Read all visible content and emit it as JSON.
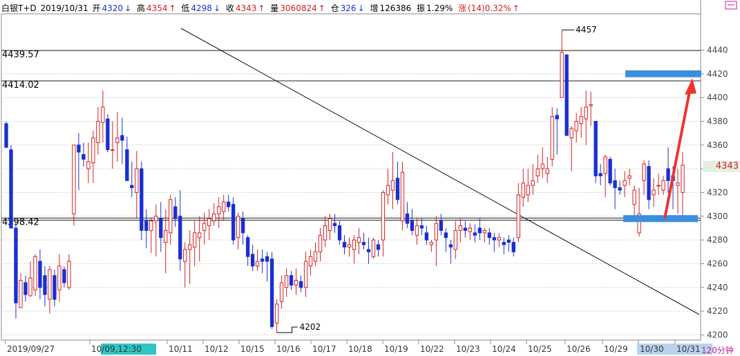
{
  "header": {
    "instrument": "白银T+D",
    "date": "2019/10/31",
    "open_label": "开",
    "open": "4320",
    "high_label": "高",
    "high": "4354",
    "low_label": "低",
    "low": "4298",
    "close_label": "收",
    "close": "4343",
    "volume_label": "量",
    "volume": "3060824",
    "oi_label": "仓",
    "oi": "326",
    "oi_change_label": "增",
    "oi_change": "126386",
    "amplitude_label": "振",
    "amplitude": "1.29%",
    "change_label": "涨",
    "change": "(14)0.32%"
  },
  "current_price_tag": "4343",
  "period": "120分钟",
  "colors": {
    "up": "#d22020",
    "down": "#1a2fd0",
    "highlight": "#3a8ee0",
    "arrow": "#ee3333"
  },
  "chart_data": {
    "type": "candlestick",
    "ylim": [
      4197,
      4457
    ],
    "y_ticks": [
      4200,
      4220,
      4240,
      4260,
      4280,
      4300,
      4320,
      4340,
      4360,
      4380,
      4400,
      4420,
      4440
    ],
    "x_labels": [
      "2019/09/27",
      "10/09,12:30",
      "10/11",
      "10/12",
      "10/15",
      "10/16",
      "10/17",
      "10/18",
      "10/19",
      "10/22",
      "10/23",
      "10/24",
      "10/25",
      "10/26",
      "10/29",
      "10/30",
      "10/31"
    ],
    "highlighted_x_labels": [
      "10/09,12:30",
      "10/30",
      "10/31"
    ],
    "horizontal_levels": [
      {
        "label": "4439.57",
        "value": 4439.57
      },
      {
        "label": "4414.02",
        "value": 4414.02
      },
      {
        "label": "4298.42",
        "value": 4298.42
      }
    ],
    "annotations": [
      {
        "text": "4457",
        "value": 4457
      },
      {
        "text": "4202",
        "value": 4202
      }
    ],
    "candles": [
      [
        4378,
        4380,
        4358,
        4358
      ],
      [
        4356,
        4360,
        4290,
        4290
      ],
      [
        4290,
        4295,
        4214,
        4227
      ],
      [
        4223,
        4252,
        4223,
        4246
      ],
      [
        4244,
        4250,
        4228,
        4234
      ],
      [
        4233,
        4262,
        4232,
        4248
      ],
      [
        4238,
        4268,
        4233,
        4266
      ],
      [
        4262,
        4272,
        4230,
        4240
      ],
      [
        4250,
        4258,
        4224,
        4234
      ],
      [
        4230,
        4258,
        4218,
        4255
      ],
      [
        4250,
        4255,
        4224,
        4230
      ],
      [
        4238,
        4268,
        4228,
        4258
      ],
      [
        4255,
        4258,
        4240,
        4244
      ],
      [
        4240,
        4268,
        4238,
        4262
      ],
      [
        4302,
        4360,
        4292,
        4360
      ],
      [
        4360,
        4370,
        4322,
        4354
      ],
      [
        4352,
        4362,
        4342,
        4348
      ],
      [
        4340,
        4362,
        4328,
        4346
      ],
      [
        4345,
        4372,
        4328,
        4366
      ],
      [
        4362,
        4392,
        4352,
        4380
      ],
      [
        4379,
        4406,
        4362,
        4392
      ],
      [
        4382,
        4386,
        4354,
        4356
      ],
      [
        4356,
        4380,
        4340,
        4356
      ],
      [
        4362,
        4388,
        4346,
        4366
      ],
      [
        4368,
        4383,
        4344,
        4364
      ],
      [
        4356,
        4367,
        4330,
        4330
      ],
      [
        4326,
        4346,
        4316,
        4324
      ],
      [
        4320,
        4355,
        4298,
        4340
      ],
      [
        4340,
        4346,
        4280,
        4288
      ],
      [
        4296,
        4306,
        4273,
        4288
      ],
      [
        4288,
        4299,
        4269,
        4296
      ],
      [
        4296,
        4310,
        4266,
        4300
      ],
      [
        4298,
        4312,
        4270,
        4282
      ],
      [
        4278,
        4306,
        4252,
        4288
      ],
      [
        4286,
        4318,
        4276,
        4314
      ],
      [
        4308,
        4316,
        4291,
        4298
      ],
      [
        4300,
        4322,
        4254,
        4264
      ],
      [
        4262,
        4278,
        4240,
        4272
      ],
      [
        4272,
        4288,
        4243,
        4276
      ],
      [
        4274,
        4297,
        4258,
        4286
      ],
      [
        4282,
        4300,
        4262,
        4286
      ],
      [
        4288,
        4303,
        4276,
        4294
      ],
      [
        4292,
        4306,
        4280,
        4298
      ],
      [
        4296,
        4311,
        4292,
        4302
      ],
      [
        4302,
        4316,
        4290,
        4308
      ],
      [
        4304,
        4318,
        4296,
        4312
      ],
      [
        4312,
        4318,
        4304,
        4308
      ],
      [
        4310,
        4316,
        4276,
        4280
      ],
      [
        4282,
        4303,
        4272,
        4300
      ],
      [
        4298,
        4304,
        4276,
        4286
      ],
      [
        4282,
        4284,
        4258,
        4266
      ],
      [
        4268,
        4276,
        4254,
        4258
      ],
      [
        4258,
        4272,
        4254,
        4262
      ],
      [
        4264,
        4272,
        4252,
        4262
      ],
      [
        4266,
        4270,
        4245,
        4262
      ],
      [
        4264,
        4270,
        4205,
        4207
      ],
      [
        4210,
        4230,
        4202,
        4226
      ],
      [
        4228,
        4250,
        4222,
        4244
      ],
      [
        4240,
        4256,
        4232,
        4250
      ],
      [
        4250,
        4254,
        4238,
        4242
      ],
      [
        4242,
        4256,
        4234,
        4246
      ],
      [
        4245,
        4250,
        4236,
        4240
      ],
      [
        4240,
        4270,
        4232,
        4262
      ],
      [
        4258,
        4272,
        4250,
        4266
      ],
      [
        4262,
        4278,
        4258,
        4270
      ],
      [
        4270,
        4290,
        4262,
        4284
      ],
      [
        4280,
        4300,
        4274,
        4292
      ],
      [
        4288,
        4302,
        4280,
        4298
      ],
      [
        4294,
        4302,
        4286,
        4292
      ],
      [
        4292,
        4296,
        4276,
        4280
      ],
      [
        4278,
        4284,
        4268,
        4274
      ],
      [
        4274,
        4282,
        4266,
        4276
      ],
      [
        4272,
        4284,
        4260,
        4280
      ],
      [
        4278,
        4290,
        4268,
        4282
      ],
      [
        4278,
        4286,
        4272,
        4276
      ],
      [
        4272,
        4282,
        4260,
        4270
      ],
      [
        4266,
        4282,
        4264,
        4280
      ],
      [
        4276,
        4280,
        4266,
        4272
      ],
      [
        4280,
        4322,
        4266,
        4320
      ],
      [
        4318,
        4340,
        4310,
        4326
      ],
      [
        4322,
        4354,
        4306,
        4330
      ],
      [
        4332,
        4346,
        4310,
        4314
      ],
      [
        4296,
        4346,
        4288,
        4337
      ],
      [
        4302,
        4312,
        4290,
        4294
      ],
      [
        4296,
        4306,
        4284,
        4288
      ],
      [
        4284,
        4298,
        4276,
        4292
      ],
      [
        4292,
        4298,
        4284,
        4290
      ],
      [
        4286,
        4292,
        4276,
        4280
      ],
      [
        4276,
        4280,
        4270,
        4278
      ],
      [
        4280,
        4300,
        4258,
        4294
      ],
      [
        4296,
        4302,
        4284,
        4288
      ],
      [
        4286,
        4290,
        4270,
        4282
      ],
      [
        4276,
        4280,
        4260,
        4274
      ],
      [
        4272,
        4296,
        4264,
        4288
      ],
      [
        4288,
        4298,
        4278,
        4292
      ],
      [
        4290,
        4296,
        4282,
        4288
      ],
      [
        4287,
        4294,
        4280,
        4290
      ],
      [
        4286,
        4293,
        4278,
        4284
      ],
      [
        4290,
        4298,
        4280,
        4286
      ],
      [
        4286,
        4290,
        4278,
        4288
      ],
      [
        4286,
        4290,
        4276,
        4282
      ],
      [
        4282,
        4286,
        4270,
        4280
      ],
      [
        4280,
        4286,
        4274,
        4282
      ],
      [
        4278,
        4282,
        4268,
        4276
      ],
      [
        4280,
        4284,
        4270,
        4278
      ],
      [
        4278,
        4282,
        4266,
        4270
      ],
      [
        4282,
        4328,
        4278,
        4318
      ],
      [
        4316,
        4340,
        4308,
        4328
      ],
      [
        4318,
        4340,
        4312,
        4326
      ],
      [
        4326,
        4344,
        4318,
        4330
      ],
      [
        4334,
        4352,
        4328,
        4340
      ],
      [
        4340,
        4358,
        4332,
        4344
      ],
      [
        4336,
        4350,
        4328,
        4340
      ],
      [
        4348,
        4392,
        4342,
        4384
      ],
      [
        4385,
        4391,
        4352,
        4382
      ],
      [
        4400,
        4457,
        4400,
        4438
      ],
      [
        4436,
        4436,
        4368,
        4368
      ],
      [
        4366,
        4376,
        4338,
        4374
      ],
      [
        4372,
        4387,
        4362,
        4380
      ],
      [
        4378,
        4392,
        4366,
        4384
      ],
      [
        4382,
        4406,
        4360,
        4392
      ],
      [
        4393,
        4405,
        4376,
        4394
      ],
      [
        4380,
        4380,
        4328,
        4334
      ],
      [
        4336,
        4344,
        4326,
        4334
      ],
      [
        4336,
        4352,
        4316,
        4350
      ],
      [
        4348,
        4350,
        4326,
        4328
      ],
      [
        4330,
        4340,
        4306,
        4324
      ],
      [
        4324,
        4330,
        4318,
        4322
      ],
      [
        4326,
        4338,
        4316,
        4330
      ],
      [
        4332,
        4340,
        4326,
        4334
      ],
      [
        4310,
        4326,
        4300,
        4322
      ],
      [
        4286,
        4324,
        4283,
        4302
      ],
      [
        4330,
        4347,
        4318,
        4344
      ],
      [
        4342,
        4347,
        4306,
        4314
      ],
      [
        4318,
        4332,
        4308,
        4322
      ],
      [
        4326,
        4336,
        4318,
        4326
      ],
      [
        4322,
        4334,
        4318,
        4330
      ],
      [
        4340,
        4358,
        4320,
        4330
      ],
      [
        4334,
        4342,
        4306,
        4330
      ],
      [
        4326,
        4340,
        4302,
        4328
      ],
      [
        4320,
        4354,
        4298,
        4343
      ]
    ]
  }
}
